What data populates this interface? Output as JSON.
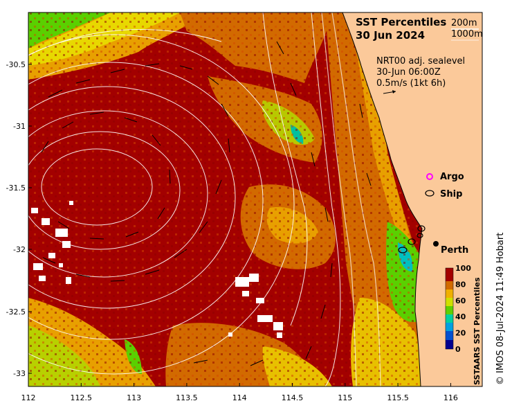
{
  "map": {
    "title_line1": "SST Percentiles",
    "title_line2": "30 Jun 2024",
    "depth_label_1": "200m",
    "depth_label_2": "1000m",
    "info_line1": "NRT00 adj. sealevel",
    "info_line2": "30-Jun 06:00Z",
    "info_line3": "0.5m/s (1kt 6h)",
    "legend_argo": "Argo",
    "legend_ship": "Ship",
    "place_perth": "Perth",
    "x_ticks": [
      "112",
      "112.5",
      "113",
      "113.5",
      "114",
      "114.5",
      "115",
      "115.5",
      "116"
    ],
    "y_ticks": [
      "-30.5",
      "-31",
      "-31.5",
      "-32",
      "-32.5",
      "-33"
    ],
    "colorbar_title": "SSTAARS SST Percentiles",
    "colorbar_ticks": [
      "0",
      "20",
      "40",
      "60",
      "80",
      "100"
    ],
    "copyright": "© IMOS 08-Jul-2024 11:49 Hobart"
  },
  "colors": {
    "ocean_high": "#a30000",
    "ocean_mid": "#d26a00",
    "ocean_warm": "#e8a000",
    "ocean_yellow": "#e8d800",
    "ocean_green": "#5ad000",
    "ocean_cyan": "#00c0c0",
    "land": "#fbc99a",
    "contour": "#ffffff",
    "argo": "#ff00ff",
    "ship": "#000000"
  }
}
